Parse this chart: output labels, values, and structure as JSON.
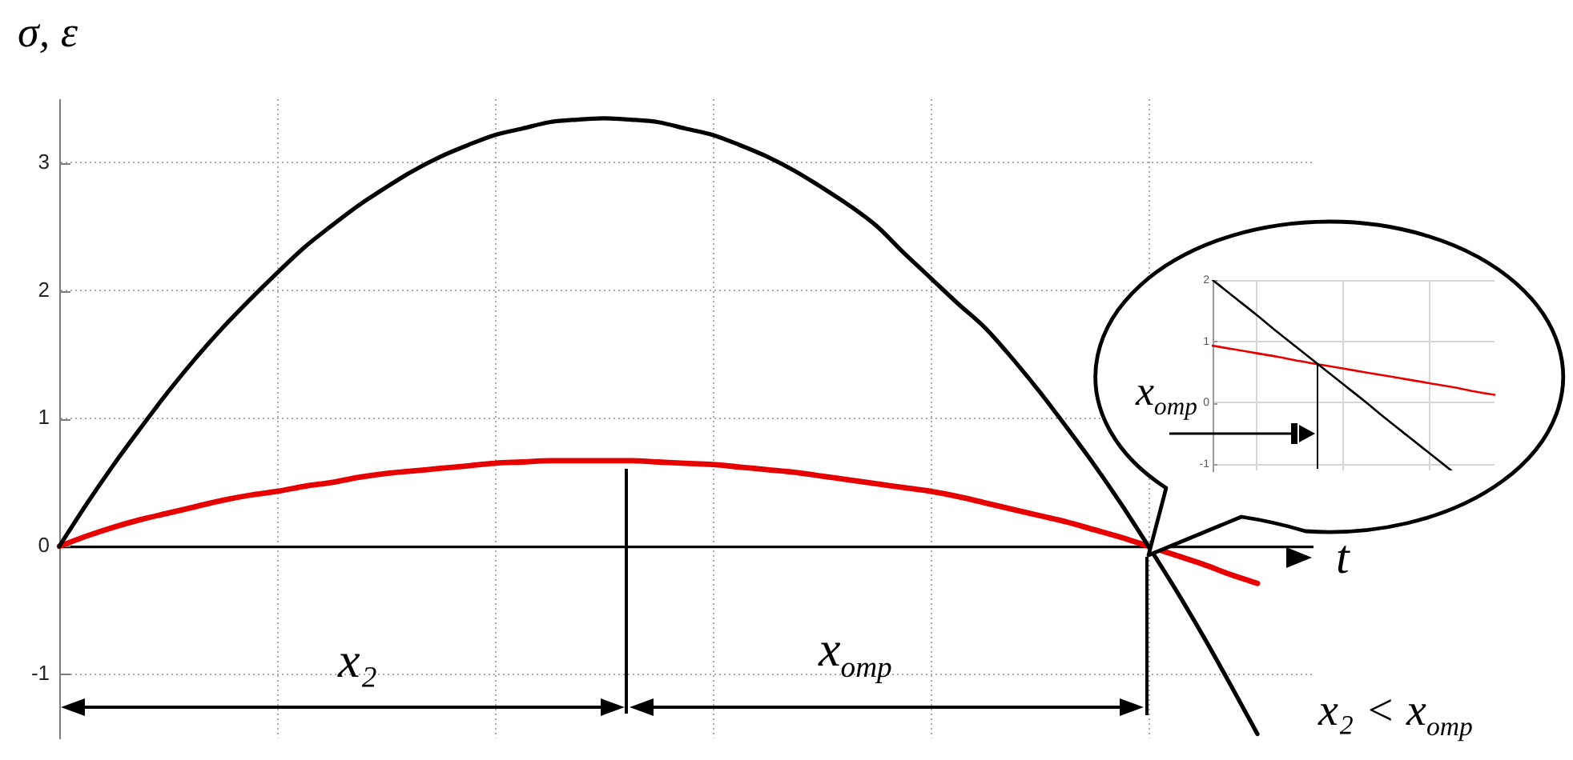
{
  "chart_data": [
    {
      "type": "line",
      "ylabel": "σ, ε",
      "xlabel": "t",
      "categories": [
        null,
        null,
        null,
        null,
        null,
        null,
        null,
        null,
        null,
        null,
        null,
        null,
        null,
        null,
        null,
        null,
        null,
        null,
        null,
        null,
        null,
        null,
        null,
        null,
        null,
        null,
        null,
        null,
        null,
        null,
        null,
        null,
        null,
        null,
        null,
        null,
        null,
        null,
        null,
        null,
        null,
        null,
        null,
        null,
        null,
        null,
        null
      ],
      "series": [
        {
          "color": "#000000",
          "values": [
            0,
            0.33,
            0.64,
            0.93,
            1.21,
            1.47,
            1.71,
            1.93,
            2.14,
            2.34,
            2.51,
            2.67,
            2.81,
            2.94,
            3.05,
            3.14,
            3.22,
            3.27,
            3.32,
            3.34,
            3.35,
            3.34,
            3.32,
            3.27,
            3.22,
            3.14,
            3.05,
            2.94,
            2.81,
            2.67,
            2.51,
            2.3,
            2.1,
            1.9,
            1.71,
            1.47,
            1.21,
            0.93,
            0.64,
            0.33,
            0,
            -0.34,
            -0.7,
            -1.08,
            -1.47,
            null,
            null
          ]
        },
        {
          "color": "#e60000",
          "values": [
            0,
            0.08,
            0.15,
            0.21,
            0.26,
            0.31,
            0.36,
            0.4,
            0.43,
            0.47,
            0.5,
            0.54,
            0.57,
            0.59,
            0.61,
            0.63,
            0.65,
            0.66,
            0.67,
            0.67,
            0.67,
            0.67,
            0.66,
            0.65,
            0.64,
            0.62,
            0.6,
            0.58,
            0.55,
            0.52,
            0.49,
            0.46,
            0.43,
            0.39,
            0.34,
            0.29,
            0.24,
            0.19,
            0.13,
            0.07,
            0,
            -0.07,
            -0.14,
            -0.22,
            -0.29,
            null,
            null
          ]
        }
      ],
      "ylim": [
        -1.5,
        3.5
      ],
      "yticks": [
        -1,
        0,
        1,
        2,
        3
      ],
      "grid": true,
      "tick_labels": "y",
      "annotations": [
        "x₂",
        "x$_{отр}$",
        "x₂ < x$_{отр}$"
      ]
    },
    {
      "type": "line",
      "categories": [
        null,
        null,
        null,
        null,
        null,
        null,
        null,
        null,
        null,
        null,
        null,
        null,
        null,
        null
      ],
      "series": [
        {
          "color": "#000000",
          "values": [
            2,
            1.72,
            1.44,
            1.15,
            0.87,
            0.59,
            0.31,
            0.03,
            -0.26,
            -0.54,
            -0.82,
            -1.1,
            null,
            null
          ]
        },
        {
          "color": "#e60000",
          "values": [
            0.93,
            0.87,
            0.81,
            0.75,
            0.68,
            0.62,
            0.56,
            0.5,
            0.44,
            0.38,
            0.32,
            0.26,
            0.19,
            0.13
          ]
        }
      ],
      "ylim": [
        -1.1,
        2
      ],
      "yticks": [
        -1,
        0,
        1,
        2
      ],
      "grid": true,
      "tick_labels": "y",
      "annotations": [
        "x$_{отр}$"
      ]
    }
  ]
}
